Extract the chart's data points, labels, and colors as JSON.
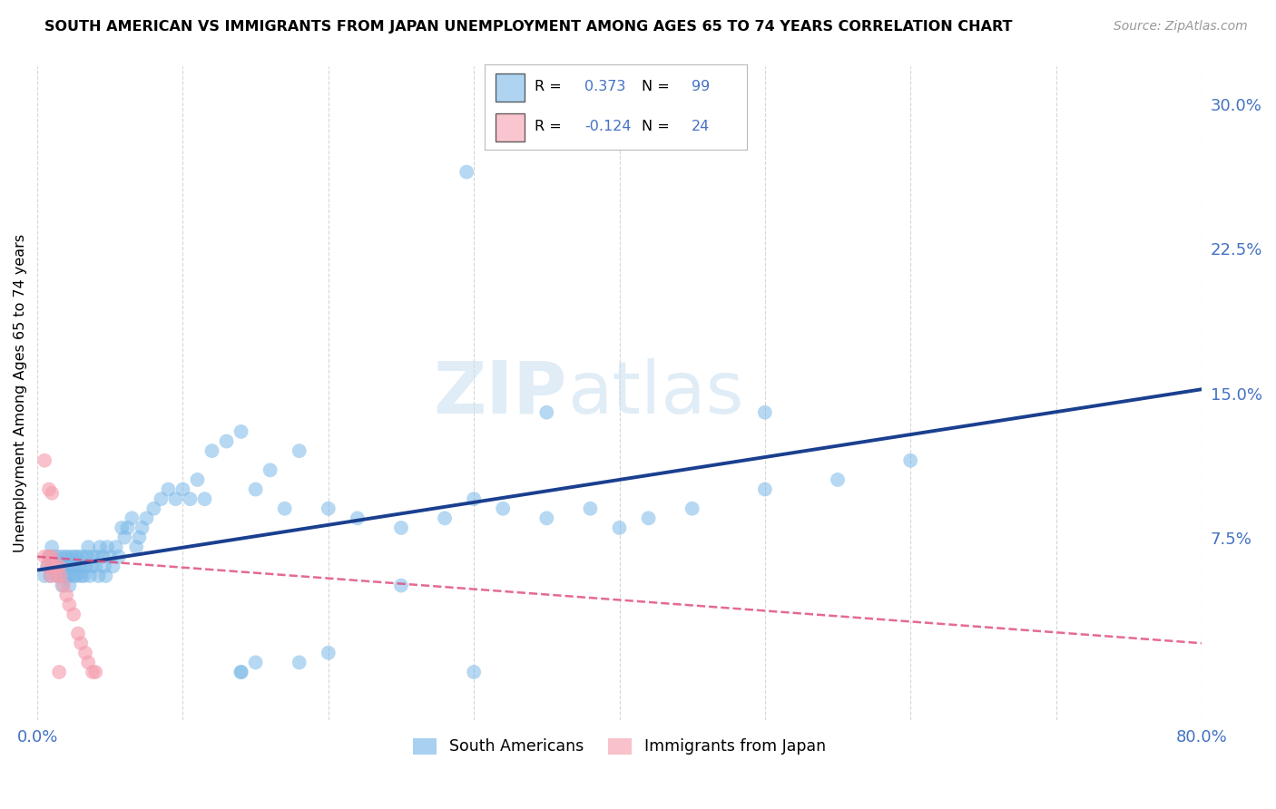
{
  "title": "SOUTH AMERICAN VS IMMIGRANTS FROM JAPAN UNEMPLOYMENT AMONG AGES 65 TO 74 YEARS CORRELATION CHART",
  "source": "Source: ZipAtlas.com",
  "ylabel": "Unemployment Among Ages 65 to 74 years",
  "xlim": [
    0.0,
    0.8
  ],
  "ylim": [
    -0.02,
    0.32
  ],
  "grid_color": "#cccccc",
  "background_color": "#ffffff",
  "blue_color": "#7ab8e8",
  "pink_color": "#f5a0b0",
  "blue_line_color": "#1a3f8f",
  "pink_line_color": "#e05080",
  "r_blue": 0.373,
  "n_blue": 99,
  "r_pink": -0.124,
  "n_pink": 24,
  "watermark_zip": "ZIP",
  "watermark_atlas": "atlas",
  "legend_r_blue": "0.373",
  "legend_n_blue": "99",
  "legend_r_pink": "-0.124",
  "legend_n_pink": "24",
  "blue_label": "South Americans",
  "pink_label": "Immigrants from Japan",
  "blue_scatter": {
    "x": [
      0.005,
      0.007,
      0.008,
      0.009,
      0.01,
      0.01,
      0.01,
      0.012,
      0.013,
      0.014,
      0.015,
      0.015,
      0.016,
      0.017,
      0.018,
      0.018,
      0.019,
      0.02,
      0.02,
      0.021,
      0.022,
      0.022,
      0.023,
      0.024,
      0.025,
      0.025,
      0.026,
      0.027,
      0.028,
      0.028,
      0.03,
      0.03,
      0.031,
      0.032,
      0.033,
      0.034,
      0.035,
      0.036,
      0.037,
      0.038,
      0.04,
      0.041,
      0.042,
      0.043,
      0.045,
      0.046,
      0.047,
      0.048,
      0.05,
      0.052,
      0.054,
      0.056,
      0.058,
      0.06,
      0.062,
      0.065,
      0.068,
      0.07,
      0.072,
      0.075,
      0.08,
      0.085,
      0.09,
      0.095,
      0.1,
      0.105,
      0.11,
      0.115,
      0.12,
      0.13,
      0.14,
      0.15,
      0.16,
      0.17,
      0.18,
      0.2,
      0.22,
      0.25,
      0.28,
      0.3,
      0.32,
      0.35,
      0.38,
      0.4,
      0.42,
      0.45,
      0.5,
      0.55,
      0.6,
      0.295,
      0.14,
      0.15,
      0.3,
      0.35,
      0.25,
      0.2,
      0.18,
      0.14,
      0.5
    ],
    "y": [
      0.055,
      0.06,
      0.065,
      0.055,
      0.06,
      0.065,
      0.07,
      0.06,
      0.065,
      0.055,
      0.055,
      0.06,
      0.065,
      0.05,
      0.055,
      0.06,
      0.065,
      0.055,
      0.06,
      0.065,
      0.05,
      0.055,
      0.06,
      0.065,
      0.055,
      0.06,
      0.065,
      0.055,
      0.06,
      0.065,
      0.055,
      0.06,
      0.065,
      0.055,
      0.06,
      0.065,
      0.07,
      0.055,
      0.06,
      0.065,
      0.06,
      0.065,
      0.055,
      0.07,
      0.065,
      0.06,
      0.055,
      0.07,
      0.065,
      0.06,
      0.07,
      0.065,
      0.08,
      0.075,
      0.08,
      0.085,
      0.07,
      0.075,
      0.08,
      0.085,
      0.09,
      0.095,
      0.1,
      0.095,
      0.1,
      0.095,
      0.105,
      0.095,
      0.12,
      0.125,
      0.13,
      0.1,
      0.11,
      0.09,
      0.12,
      0.09,
      0.085,
      0.08,
      0.085,
      0.095,
      0.09,
      0.085,
      0.09,
      0.08,
      0.085,
      0.09,
      0.1,
      0.105,
      0.115,
      0.265,
      0.005,
      0.01,
      0.005,
      0.14,
      0.05,
      0.015,
      0.01,
      0.005,
      0.14
    ]
  },
  "pink_scatter": {
    "x": [
      0.005,
      0.007,
      0.008,
      0.009,
      0.01,
      0.01,
      0.012,
      0.013,
      0.015,
      0.016,
      0.018,
      0.02,
      0.022,
      0.025,
      0.028,
      0.03,
      0.033,
      0.035,
      0.038,
      0.04,
      0.005,
      0.008,
      0.01,
      0.015
    ],
    "y": [
      0.065,
      0.06,
      0.065,
      0.055,
      0.06,
      0.065,
      0.06,
      0.055,
      0.06,
      0.055,
      0.05,
      0.045,
      0.04,
      0.035,
      0.025,
      0.02,
      0.015,
      0.01,
      0.005,
      0.005,
      0.115,
      0.1,
      0.098,
      0.005
    ]
  },
  "blue_line": {
    "x0": 0.0,
    "x1": 0.8,
    "y0": 0.058,
    "y1": 0.152
  },
  "pink_line": {
    "x0": 0.0,
    "x1": 0.8,
    "y0": 0.065,
    "y1": 0.02
  }
}
